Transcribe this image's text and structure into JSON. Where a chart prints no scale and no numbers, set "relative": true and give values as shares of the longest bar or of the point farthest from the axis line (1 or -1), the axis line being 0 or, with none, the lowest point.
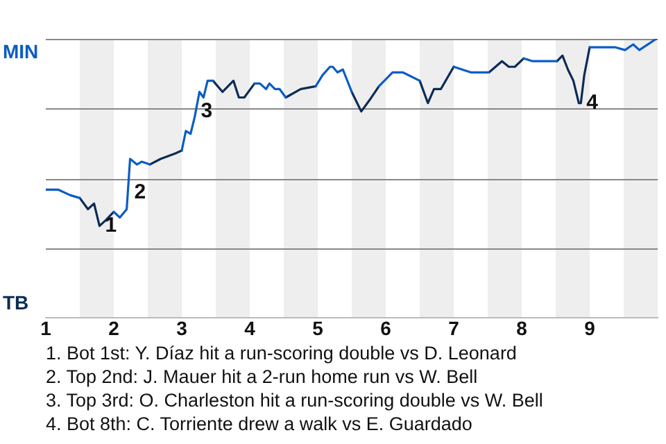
{
  "chart_data": {
    "type": "line",
    "relative": true,
    "x": [
      1,
      1.18,
      1.36,
      1.5,
      1.62,
      1.71,
      1.79,
      1.88,
      2,
      2.09,
      2.19,
      2.24,
      2.34,
      2.41,
      2.53,
      2.69,
      2.91,
      3,
      3.06,
      3.13,
      3.19,
      3.26,
      3.32,
      3.38,
      3.46,
      3.6,
      3.76,
      3.84,
      3.92,
      4.07,
      4.15,
      4.24,
      4.29,
      4.37,
      4.44,
      4.53,
      4.75,
      4.97,
      5.07,
      5.18,
      5.22,
      5.29,
      5.37,
      5.5,
      5.64,
      5.76,
      5.9,
      6.1,
      6.25,
      6.5,
      6.62,
      6.71,
      6.81,
      7,
      7.25,
      7.52,
      7.71,
      7.81,
      7.9,
      8.03,
      8.16,
      8.52,
      8.6,
      8.68,
      8.76,
      8.84,
      8.87,
      8.92,
      9,
      9.13,
      9.37,
      9.52,
      9.64,
      9.73,
      9.98
    ],
    "series": [
      {
        "color": "#0b5cc5",
        "values": [
          0.46,
          0.46,
          0.44,
          0.43,
          null,
          null,
          null,
          null,
          0.38,
          0.36,
          0.39,
          0.57,
          0.55,
          0.56,
          0.55,
          null,
          null,
          0.6,
          0.67,
          0.66,
          0.72,
          0.81,
          0.79,
          0.85,
          0.85,
          null,
          null,
          null,
          null,
          0.84,
          0.84,
          0.82,
          0.84,
          0.82,
          0.82,
          0.79,
          null,
          0.83,
          0.87,
          0.9,
          0.9,
          0.88,
          0.89,
          0.81,
          null,
          null,
          0.83,
          0.88,
          0.88,
          0.85,
          null,
          null,
          null,
          0.9,
          0.88,
          0.88,
          null,
          null,
          null,
          0.93,
          0.92,
          0.92,
          null,
          null,
          null,
          null,
          null,
          null,
          0.97,
          0.97,
          0.97,
          0.96,
          0.98,
          0.96,
          1
        ]
      },
      {
        "color": "#0c2c56",
        "values": [
          null,
          null,
          null,
          0.43,
          0.39,
          0.41,
          0.33,
          0.35,
          0.38,
          null,
          null,
          null,
          null,
          null,
          0.55,
          0.57,
          0.59,
          0.6,
          null,
          null,
          null,
          null,
          null,
          null,
          0.85,
          0.81,
          0.85,
          0.79,
          0.79,
          0.84,
          null,
          null,
          null,
          null,
          null,
          0.79,
          0.82,
          0.83,
          null,
          null,
          null,
          null,
          null,
          0.81,
          0.74,
          0.78,
          0.83,
          null,
          null,
          0.85,
          0.77,
          0.82,
          0.82,
          0.9,
          null,
          0.88,
          0.92,
          0.9,
          0.9,
          0.93,
          null,
          0.92,
          0.94,
          0.89,
          0.85,
          0.77,
          0.77,
          0.87,
          0.97,
          null,
          null,
          null,
          null,
          null,
          null
        ]
      }
    ],
    "xlim": [
      1,
      10
    ],
    "xticks": [
      1,
      2,
      3,
      4,
      5,
      6,
      7,
      8,
      9
    ],
    "bands": [
      {
        "axis": "x",
        "from": 1.5,
        "to": 2,
        "color": "#eeeeee"
      },
      {
        "axis": "x",
        "from": 2.5,
        "to": 3,
        "color": "#eeeeee"
      },
      {
        "axis": "x",
        "from": 3.5,
        "to": 4,
        "color": "#eeeeee"
      },
      {
        "axis": "x",
        "from": 4.5,
        "to": 5,
        "color": "#eeeeee"
      },
      {
        "axis": "x",
        "from": 5.5,
        "to": 6,
        "color": "#eeeeee"
      },
      {
        "axis": "x",
        "from": 6.5,
        "to": 7,
        "color": "#eeeeee"
      },
      {
        "axis": "x",
        "from": 7.5,
        "to": 8,
        "color": "#eeeeee"
      },
      {
        "axis": "x",
        "from": 8.5,
        "to": 9,
        "color": "#eeeeee"
      },
      {
        "axis": "x",
        "from": 9.5,
        "to": 10,
        "color": "#eeeeee"
      }
    ],
    "ref_lines": [
      {
        "axis": "y",
        "value": 0.25,
        "color": "#888888"
      },
      {
        "axis": "y",
        "value": 0.5,
        "color": "#888888"
      },
      {
        "axis": "y",
        "value": 0.75,
        "color": "#888888"
      },
      {
        "axis": "y",
        "value": 1,
        "color": "#888888"
      }
    ],
    "legend": false,
    "annotations": [
      "MIN",
      "TB",
      {
        "text": "1",
        "x": 1.79,
        "y": 0.33
      },
      {
        "text": "2",
        "x": 2.22,
        "y": 0.45
      },
      {
        "text": "3",
        "x": 3.2,
        "y": 0.74
      },
      {
        "text": "4",
        "x": 8.87,
        "y": 0.77
      },
      "1. Bot 1st: Y. Díaz hit a run-scoring double vs D. Leonard",
      "2. Top 2nd: J. Mauer hit a 2-run home run vs W. Bell",
      "3. Top 3rd: O. Charleston hit a run-scoring double vs W. Bell",
      "4. Bot 8th: C. Torriente drew a walk vs E. Guardado"
    ]
  }
}
